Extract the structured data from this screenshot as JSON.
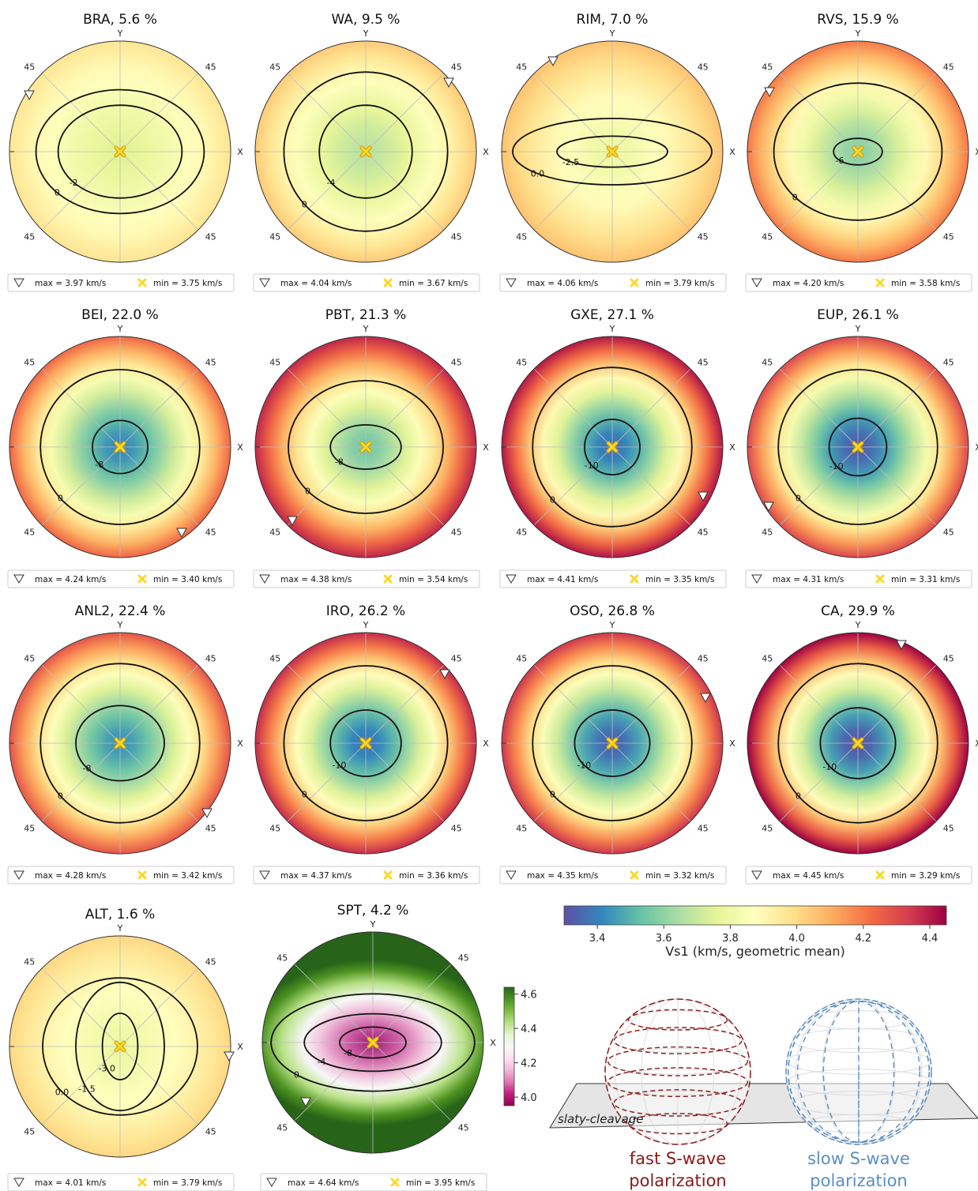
{
  "chart_data": {
    "type": "heatmap",
    "description_kind": "stereographic pole figures",
    "colorbar": {
      "label": "Vs1 (km/s, geometric mean)",
      "ticks": [
        "3.4",
        "3.6",
        "3.8",
        "4.0",
        "4.2",
        "4.4"
      ],
      "range": [
        3.3,
        4.45
      ],
      "colormap": "Spectral_r"
    },
    "small_colorbar": {
      "ticks": [
        "4.6",
        "4.4",
        "4.2",
        "4.0"
      ],
      "range": [
        3.95,
        4.64
      ],
      "colormap": "PiYG"
    },
    "axis_labels": {
      "x": "X",
      "y": "Y",
      "deg": "45"
    },
    "panels": [
      {
        "title": "BRA, 5.6 %",
        "max_label": "max = 3.97 km/s",
        "min_label": "min = 3.75 km/s",
        "vmin": 3.75,
        "vmax": 3.97,
        "contours": [
          {
            "label": "0",
            "ra": 0.76,
            "rb": 0.56
          },
          {
            "label": "-2",
            "ra": 0.56,
            "rb": 0.42
          }
        ]
      },
      {
        "title": "WA, 9.5 %",
        "max_label": "max = 4.04 km/s",
        "min_label": "min = 3.67 km/s",
        "vmin": 3.67,
        "vmax": 4.04,
        "contours": [
          {
            "label": "0",
            "ra": 0.74,
            "rb": 0.72
          },
          {
            "label": "-4",
            "ra": 0.42,
            "rb": 0.42
          }
        ]
      },
      {
        "title": "RIM, 7.0 %",
        "max_label": "max = 4.06 km/s",
        "min_label": "min = 3.79 km/s",
        "vmin": 3.79,
        "vmax": 4.06,
        "contours": [
          {
            "label": "0.0",
            "ra": 0.9,
            "rb": 0.3
          },
          {
            "label": "-2.5",
            "ra": 0.5,
            "rb": 0.14
          }
        ]
      },
      {
        "title": "RVS, 15.9 %",
        "max_label": "max = 4.20 km/s",
        "min_label": "min = 3.58 km/s",
        "vmin": 3.58,
        "vmax": 4.2,
        "contours": [
          {
            "label": "0",
            "ra": 0.76,
            "rb": 0.62
          },
          {
            "label": "-6",
            "ra": 0.22,
            "rb": 0.12
          }
        ]
      },
      {
        "title": "BEI, 22.0 %",
        "max_label": "max = 4.24 km/s",
        "min_label": "min = 3.40 km/s",
        "vmin": 3.4,
        "vmax": 4.24,
        "contours": [
          {
            "label": "0",
            "ra": 0.72,
            "rb": 0.7
          },
          {
            "label": "-8",
            "ra": 0.25,
            "rb": 0.24
          }
        ]
      },
      {
        "title": "PBT, 21.3 %",
        "max_label": "max = 4.38 km/s",
        "min_label": "min = 3.54 km/s",
        "vmin": 3.54,
        "vmax": 4.38,
        "contours": [
          {
            "label": "0",
            "ra": 0.7,
            "rb": 0.6
          },
          {
            "label": "-8",
            "ra": 0.32,
            "rb": 0.2
          }
        ]
      },
      {
        "title": "GXE, 27.1 %",
        "max_label": "max = 4.41 km/s",
        "min_label": "min = 3.35 km/s",
        "vmin": 3.35,
        "vmax": 4.41,
        "contours": [
          {
            "label": "0",
            "ra": 0.72,
            "rb": 0.72
          },
          {
            "label": "-10",
            "ra": 0.25,
            "rb": 0.25
          }
        ]
      },
      {
        "title": "EUP, 26.1 %",
        "max_label": "max = 4.31 km/s",
        "min_label": "min = 3.31 km/s",
        "vmin": 3.31,
        "vmax": 4.31,
        "contours": [
          {
            "label": "0",
            "ra": 0.72,
            "rb": 0.7
          },
          {
            "label": "-10",
            "ra": 0.26,
            "rb": 0.26
          }
        ]
      },
      {
        "title": "ANL2, 22.4 %",
        "max_label": "max = 4.28 km/s",
        "min_label": "min = 3.42 km/s",
        "vmin": 3.42,
        "vmax": 4.28,
        "contours": [
          {
            "label": "0",
            "ra": 0.72,
            "rb": 0.72
          },
          {
            "label": "-8",
            "ra": 0.4,
            "rb": 0.34
          }
        ]
      },
      {
        "title": "IRO, 26.2 %",
        "max_label": "max = 4.37 km/s",
        "min_label": "min = 3.36 km/s",
        "vmin": 3.36,
        "vmax": 4.37,
        "contours": [
          {
            "label": "0",
            "ra": 0.74,
            "rb": 0.7
          },
          {
            "label": "-10",
            "ra": 0.32,
            "rb": 0.3
          }
        ]
      },
      {
        "title": "OSO, 26.8 %",
        "max_label": "max = 4.35 km/s",
        "min_label": "min = 3.32 km/s",
        "vmin": 3.32,
        "vmax": 4.35,
        "contours": [
          {
            "label": "0",
            "ra": 0.72,
            "rb": 0.7
          },
          {
            "label": "-10",
            "ra": 0.34,
            "rb": 0.3
          }
        ]
      },
      {
        "title": "CA, 29.9 %",
        "max_label": "max = 4.45 km/s",
        "min_label": "min = 3.29 km/s",
        "vmin": 3.29,
        "vmax": 4.45,
        "contours": [
          {
            "label": "0",
            "ra": 0.72,
            "rb": 0.72
          },
          {
            "label": "-10",
            "ra": 0.34,
            "rb": 0.32
          }
        ]
      },
      {
        "title": "ALT, 1.6 %",
        "max_label": "max = 4.01 km/s",
        "min_label": "min = 3.79 km/s",
        "vmin": 3.79,
        "vmax": 4.01,
        "contours": [
          {
            "label": "0.0",
            "ra": 0.7,
            "rb": 0.62
          },
          {
            "label": "-1.5",
            "ra": 0.4,
            "rb": 0.58
          },
          {
            "label": "-3.0",
            "ra": 0.16,
            "rb": 0.3
          }
        ]
      },
      {
        "title": "SPT, 4.2 %",
        "max_label": "max = 4.64 km/s",
        "min_label": "min = 3.95 km/s",
        "vmin": 3.95,
        "vmax": 4.64,
        "contours": [
          {
            "label": "0",
            "ra": 0.92,
            "rb": 0.44
          },
          {
            "label": "-4",
            "ra": 0.62,
            "rb": 0.26
          },
          {
            "label": "-8",
            "ra": 0.3,
            "rb": 0.14
          }
        ]
      }
    ]
  },
  "illustration": {
    "plane_label": "slaty-cleavage",
    "fast_caption": [
      "fast S-wave",
      "polarization"
    ],
    "slow_caption": [
      "slow S-wave",
      "polarization"
    ],
    "fast_color": "#8b1a1a",
    "slow_color": "#5b8fc2"
  }
}
